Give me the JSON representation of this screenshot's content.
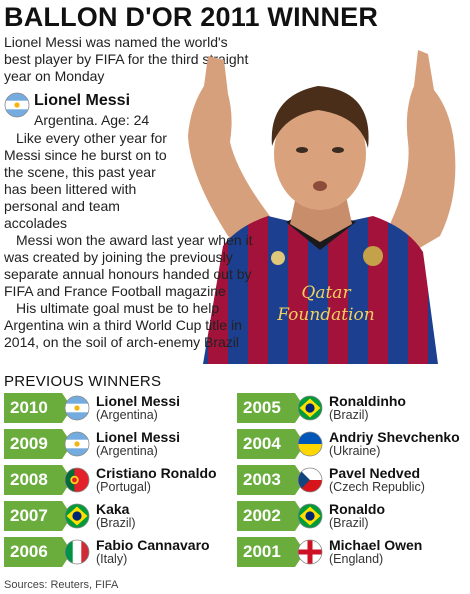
{
  "header": {
    "title": "BALLON D'OR 2011 WINNER",
    "subtitle": "Lionel Messi was named the world's best player by FIFA for the third straight year on Monday"
  },
  "player": {
    "name": "Lionel Messi",
    "meta": "Argentina. Age: 24",
    "flag_icon": "argentina-flag-icon",
    "shirt_text_line1": "Qatar",
    "shirt_text_line2": "Foundation"
  },
  "bullets": [
    "Like every other year for Messi since he burst on to the scene, this past year has been littered with personal and team accolades",
    "Messi won the award last year when it was created by joining the previously separate annual honours handed out by FIFA and France Football magazine",
    "His ultimate goal must be to help Argentina win a third World Cup title in 2014, on the soil of arch-enemy Brazil"
  ],
  "previous_winners": {
    "heading": "PREVIOUS WINNERS",
    "left": [
      {
        "year": "2010",
        "name": "Lionel Messi",
        "country": "(Argentina)",
        "flag": "argentina"
      },
      {
        "year": "2009",
        "name": "Lionel Messi",
        "country": "(Argentina)",
        "flag": "argentina"
      },
      {
        "year": "2008",
        "name": "Cristiano Ronaldo",
        "country": "(Portugal)",
        "flag": "portugal"
      },
      {
        "year": "2007",
        "name": "Kaka",
        "country": "(Brazil)",
        "flag": "brazil"
      },
      {
        "year": "2006",
        "name": "Fabio Cannavaro",
        "country": "(Italy)",
        "flag": "italy"
      }
    ],
    "right": [
      {
        "year": "2005",
        "name": "Ronaldinho",
        "country": "(Brazil)",
        "flag": "brazil"
      },
      {
        "year": "2004",
        "name": "Andriy Shevchenko",
        "country": "(Ukraine)",
        "flag": "ukraine"
      },
      {
        "year": "2003",
        "name": "Pavel Nedved",
        "country": "(Czech Republic)",
        "flag": "czech"
      },
      {
        "year": "2002",
        "name": "Ronaldo",
        "country": "(Brazil)",
        "flag": "brazil"
      },
      {
        "year": "2001",
        "name": "Michael Owen",
        "country": "(England)",
        "flag": "england"
      }
    ]
  },
  "colors": {
    "accent_green": "#6aad3d",
    "shirt_red": "#a3123a",
    "shirt_blue": "#1d3f8f"
  },
  "sources": "Sources: Reuters, FIFA"
}
